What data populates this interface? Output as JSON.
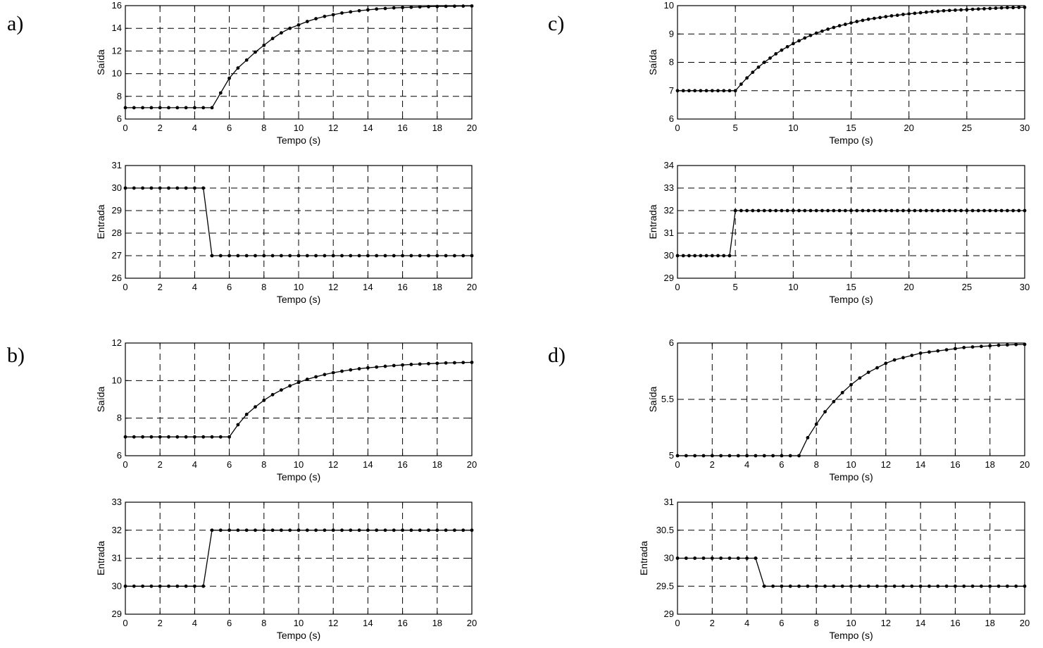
{
  "panel_labels": [
    "a)",
    "b)",
    "c)",
    "d)"
  ],
  "chart_data": [
    {
      "id": "a_saida",
      "panel": "a)",
      "type": "line",
      "marker": "dot",
      "xlabel": "Tempo (s)",
      "ylabel": "Saída",
      "xlim": [
        0,
        20
      ],
      "ylim": [
        6,
        16
      ],
      "xticks": [
        0,
        2,
        4,
        6,
        8,
        10,
        12,
        14,
        16,
        18,
        20
      ],
      "yticks": [
        6,
        8,
        10,
        12,
        14,
        16
      ],
      "grid": true,
      "series": [
        {
          "x": [
            0,
            0.5,
            1,
            1.5,
            2,
            2.5,
            3,
            3.5,
            4,
            4.5,
            5,
            5.5,
            6,
            6.5,
            7,
            7.5,
            8,
            8.5,
            9,
            9.5,
            10,
            10.5,
            11,
            11.5,
            12,
            12.5,
            13,
            13.5,
            14,
            14.5,
            15,
            15.5,
            16,
            16.5,
            17,
            17.5,
            18,
            18.5,
            19,
            19.5,
            20
          ],
          "y": [
            7,
            7,
            7,
            7,
            7,
            7,
            7,
            7,
            7,
            7,
            7,
            8.3,
            9.6,
            10.5,
            11.2,
            11.9,
            12.5,
            13.1,
            13.6,
            14.0,
            14.3,
            14.6,
            14.85,
            15.05,
            15.2,
            15.35,
            15.45,
            15.55,
            15.63,
            15.7,
            15.75,
            15.8,
            15.83,
            15.86,
            15.89,
            15.91,
            15.93,
            15.94,
            15.95,
            15.96,
            15.97
          ]
        }
      ]
    },
    {
      "id": "a_entrada",
      "panel": "a)",
      "type": "line",
      "marker": "dot",
      "xlabel": "Tempo (s)",
      "ylabel": "Entrada",
      "xlim": [
        0,
        20
      ],
      "ylim": [
        26,
        31
      ],
      "xticks": [
        0,
        2,
        4,
        6,
        8,
        10,
        12,
        14,
        16,
        18,
        20
      ],
      "yticks": [
        26,
        27,
        28,
        29,
        30,
        31
      ],
      "grid": true,
      "series": [
        {
          "x": [
            0,
            0.5,
            1,
            1.5,
            2,
            2.5,
            3,
            3.5,
            4,
            4.5,
            5,
            5.5,
            6,
            6.5,
            7,
            7.5,
            8,
            8.5,
            9,
            9.5,
            10,
            10.5,
            11,
            11.5,
            12,
            12.5,
            13,
            13.5,
            14,
            14.5,
            15,
            15.5,
            16,
            16.5,
            17,
            17.5,
            18,
            18.5,
            19,
            19.5,
            20
          ],
          "y": [
            30,
            30,
            30,
            30,
            30,
            30,
            30,
            30,
            30,
            30,
            27,
            27,
            27,
            27,
            27,
            27,
            27,
            27,
            27,
            27,
            27,
            27,
            27,
            27,
            27,
            27,
            27,
            27,
            27,
            27,
            27,
            27,
            27,
            27,
            27,
            27,
            27,
            27,
            27,
            27,
            27
          ]
        }
      ]
    },
    {
      "id": "b_saida",
      "panel": "b)",
      "type": "line",
      "marker": "dot",
      "xlabel": "Tempo (s)",
      "ylabel": "Saída",
      "xlim": [
        0,
        20
      ],
      "ylim": [
        6,
        12
      ],
      "xticks": [
        0,
        2,
        4,
        6,
        8,
        10,
        12,
        14,
        16,
        18,
        20
      ],
      "yticks": [
        6,
        8,
        10,
        12
      ],
      "grid": true,
      "series": [
        {
          "x": [
            0,
            0.5,
            1,
            1.5,
            2,
            2.5,
            3,
            3.5,
            4,
            4.5,
            5,
            5.5,
            6,
            6.5,
            7,
            7.5,
            8,
            8.5,
            9,
            9.5,
            10,
            10.5,
            11,
            11.5,
            12,
            12.5,
            13,
            13.5,
            14,
            14.5,
            15,
            15.5,
            16,
            16.5,
            17,
            17.5,
            18,
            18.5,
            19,
            19.5,
            20
          ],
          "y": [
            7,
            7,
            7,
            7,
            7,
            7,
            7,
            7,
            7,
            7,
            7,
            7,
            7,
            7.65,
            8.2,
            8.6,
            8.95,
            9.25,
            9.5,
            9.72,
            9.9,
            10.07,
            10.2,
            10.32,
            10.42,
            10.5,
            10.57,
            10.63,
            10.68,
            10.72,
            10.76,
            10.8,
            10.83,
            10.86,
            10.88,
            10.9,
            10.92,
            10.94,
            10.95,
            10.96,
            10.97
          ]
        }
      ]
    },
    {
      "id": "b_entrada",
      "panel": "b)",
      "type": "line",
      "marker": "dot",
      "xlabel": "Tempo (s)",
      "ylabel": "Entrada",
      "xlim": [
        0,
        20
      ],
      "ylim": [
        29,
        33
      ],
      "xticks": [
        0,
        2,
        4,
        6,
        8,
        10,
        12,
        14,
        16,
        18,
        20
      ],
      "yticks": [
        29,
        30,
        31,
        32,
        33
      ],
      "grid": true,
      "series": [
        {
          "x": [
            0,
            0.5,
            1,
            1.5,
            2,
            2.5,
            3,
            3.5,
            4,
            4.5,
            5,
            5.5,
            6,
            6.5,
            7,
            7.5,
            8,
            8.5,
            9,
            9.5,
            10,
            10.5,
            11,
            11.5,
            12,
            12.5,
            13,
            13.5,
            14,
            14.5,
            15,
            15.5,
            16,
            16.5,
            17,
            17.5,
            18,
            18.5,
            19,
            19.5,
            20
          ],
          "y": [
            30,
            30,
            30,
            30,
            30,
            30,
            30,
            30,
            30,
            30,
            32,
            32,
            32,
            32,
            32,
            32,
            32,
            32,
            32,
            32,
            32,
            32,
            32,
            32,
            32,
            32,
            32,
            32,
            32,
            32,
            32,
            32,
            32,
            32,
            32,
            32,
            32,
            32,
            32,
            32,
            32
          ]
        }
      ]
    },
    {
      "id": "c_saida",
      "panel": "c)",
      "type": "line",
      "marker": "dot",
      "xlabel": "Tempo (s)",
      "ylabel": "Saída",
      "xlim": [
        0,
        30
      ],
      "ylim": [
        6,
        10
      ],
      "xticks": [
        0,
        5,
        10,
        15,
        20,
        25,
        30
      ],
      "yticks": [
        6,
        7,
        8,
        9,
        10
      ],
      "grid": true,
      "series": [
        {
          "x": [
            0,
            0.5,
            1,
            1.5,
            2,
            2.5,
            3,
            3.5,
            4,
            4.5,
            5,
            5.5,
            6,
            6.5,
            7,
            7.5,
            8,
            8.5,
            9,
            9.5,
            10,
            10.5,
            11,
            11.5,
            12,
            12.5,
            13,
            13.5,
            14,
            14.5,
            15,
            15.5,
            16,
            16.5,
            17,
            17.5,
            18,
            18.5,
            19,
            19.5,
            20,
            20.5,
            21,
            21.5,
            22,
            22.5,
            23,
            23.5,
            24,
            24.5,
            25,
            25.5,
            26,
            26.5,
            27,
            27.5,
            28,
            28.5,
            29,
            29.5,
            30
          ],
          "y": [
            7,
            7,
            7,
            7,
            7,
            7,
            7,
            7,
            7,
            7,
            7,
            7.23,
            7.45,
            7.65,
            7.83,
            8.0,
            8.15,
            8.3,
            8.43,
            8.55,
            8.66,
            8.76,
            8.86,
            8.95,
            9.03,
            9.1,
            9.17,
            9.23,
            9.29,
            9.34,
            9.39,
            9.44,
            9.48,
            9.52,
            9.55,
            9.58,
            9.61,
            9.64,
            9.66,
            9.69,
            9.71,
            9.73,
            9.75,
            9.77,
            9.79,
            9.8,
            9.82,
            9.83,
            9.84,
            9.85,
            9.86,
            9.87,
            9.88,
            9.89,
            9.9,
            9.91,
            9.92,
            9.93,
            9.93,
            9.94,
            9.94
          ]
        }
      ]
    },
    {
      "id": "c_entrada",
      "panel": "c)",
      "type": "line",
      "marker": "dot",
      "xlabel": "Tempo (s)",
      "ylabel": "Entrada",
      "xlim": [
        0,
        30
      ],
      "ylim": [
        29,
        34
      ],
      "xticks": [
        0,
        5,
        10,
        15,
        20,
        25,
        30
      ],
      "yticks": [
        29,
        30,
        31,
        32,
        33,
        34
      ],
      "grid": true,
      "series": [
        {
          "x": [
            0,
            0.5,
            1,
            1.5,
            2,
            2.5,
            3,
            3.5,
            4,
            4.5,
            5,
            5.5,
            6,
            6.5,
            7,
            7.5,
            8,
            8.5,
            9,
            9.5,
            10,
            10.5,
            11,
            11.5,
            12,
            12.5,
            13,
            13.5,
            14,
            14.5,
            15,
            15.5,
            16,
            16.5,
            17,
            17.5,
            18,
            18.5,
            19,
            19.5,
            20,
            20.5,
            21,
            21.5,
            22,
            22.5,
            23,
            23.5,
            24,
            24.5,
            25,
            25.5,
            26,
            26.5,
            27,
            27.5,
            28,
            28.5,
            29,
            29.5,
            30
          ],
          "y": [
            30,
            30,
            30,
            30,
            30,
            30,
            30,
            30,
            30,
            30,
            32,
            32,
            32,
            32,
            32,
            32,
            32,
            32,
            32,
            32,
            32,
            32,
            32,
            32,
            32,
            32,
            32,
            32,
            32,
            32,
            32,
            32,
            32,
            32,
            32,
            32,
            32,
            32,
            32,
            32,
            32,
            32,
            32,
            32,
            32,
            32,
            32,
            32,
            32,
            32,
            32,
            32,
            32,
            32,
            32,
            32,
            32,
            32,
            32,
            32,
            32
          ]
        }
      ]
    },
    {
      "id": "d_saida",
      "panel": "d)",
      "type": "line",
      "marker": "dot",
      "xlabel": "Tempo (s)",
      "ylabel": "Saída",
      "xlim": [
        0,
        20
      ],
      "ylim": [
        5,
        6
      ],
      "xticks": [
        0,
        2,
        4,
        6,
        8,
        10,
        12,
        14,
        16,
        18,
        20
      ],
      "yticks": [
        5,
        5.5,
        6
      ],
      "grid": true,
      "series": [
        {
          "x": [
            0,
            0.5,
            1,
            1.5,
            2,
            2.5,
            3,
            3.5,
            4,
            4.5,
            5,
            5.5,
            6,
            6.5,
            7,
            7.5,
            8,
            8.5,
            9,
            9.5,
            10,
            10.5,
            11,
            11.5,
            12,
            12.5,
            13,
            13.5,
            14,
            14.5,
            15,
            15.5,
            16,
            16.5,
            17,
            17.5,
            18,
            18.5,
            19,
            19.5,
            20
          ],
          "y": [
            5,
            5,
            5,
            5,
            5,
            5,
            5,
            5,
            5,
            5,
            5,
            5,
            5,
            5,
            5,
            5.16,
            5.28,
            5.39,
            5.48,
            5.56,
            5.63,
            5.69,
            5.74,
            5.78,
            5.82,
            5.85,
            5.87,
            5.89,
            5.91,
            5.92,
            5.93,
            5.94,
            5.95,
            5.96,
            5.965,
            5.97,
            5.975,
            5.98,
            5.983,
            5.986,
            5.988
          ]
        }
      ]
    },
    {
      "id": "d_entrada",
      "panel": "d)",
      "type": "line",
      "marker": "dot",
      "xlabel": "Tempo (s)",
      "ylabel": "Entrada",
      "xlim": [
        0,
        20
      ],
      "ylim": [
        29,
        31
      ],
      "xticks": [
        0,
        2,
        4,
        6,
        8,
        10,
        12,
        14,
        16,
        18,
        20
      ],
      "yticks": [
        29,
        29.5,
        30,
        30.5,
        31
      ],
      "grid": true,
      "series": [
        {
          "x": [
            0,
            0.5,
            1,
            1.5,
            2,
            2.5,
            3,
            3.5,
            4,
            4.5,
            5,
            5.5,
            6,
            6.5,
            7,
            7.5,
            8,
            8.5,
            9,
            9.5,
            10,
            10.5,
            11,
            11.5,
            12,
            12.5,
            13,
            13.5,
            14,
            14.5,
            15,
            15.5,
            16,
            16.5,
            17,
            17.5,
            18,
            18.5,
            19,
            19.5,
            20
          ],
          "y": [
            30,
            30,
            30,
            30,
            30,
            30,
            30,
            30,
            30,
            30,
            29.5,
            29.5,
            29.5,
            29.5,
            29.5,
            29.5,
            29.5,
            29.5,
            29.5,
            29.5,
            29.5,
            29.5,
            29.5,
            29.5,
            29.5,
            29.5,
            29.5,
            29.5,
            29.5,
            29.5,
            29.5,
            29.5,
            29.5,
            29.5,
            29.5,
            29.5,
            29.5,
            29.5,
            29.5,
            29.5,
            29.5
          ]
        }
      ]
    }
  ]
}
